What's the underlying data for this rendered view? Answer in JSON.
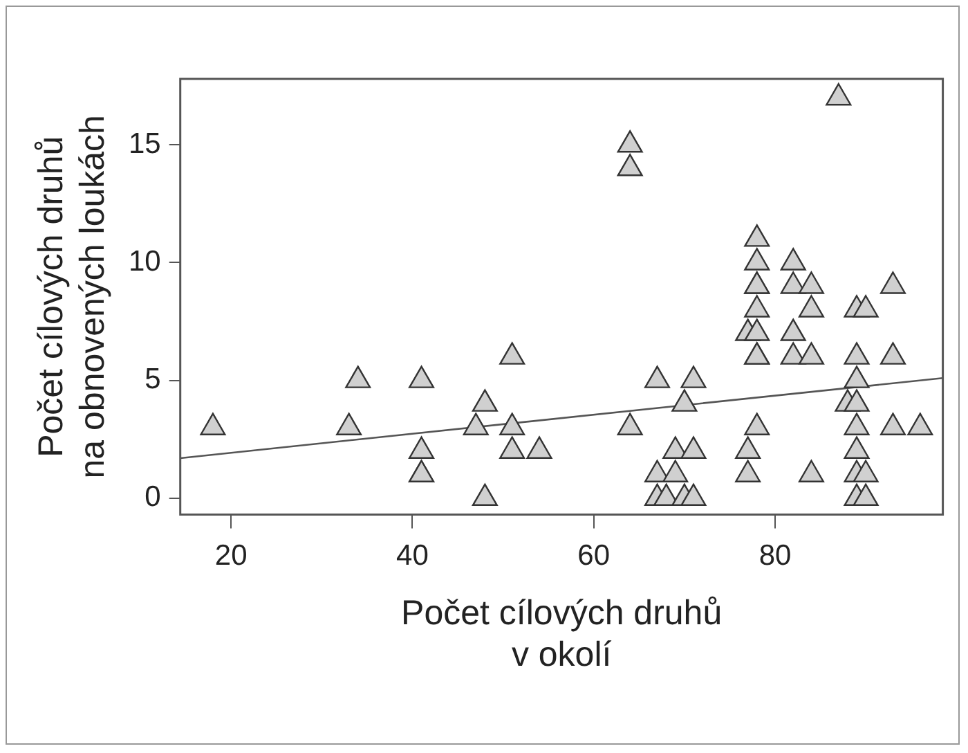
{
  "chart_data": {
    "type": "scatter",
    "xlabel": "Počet cílových druhů\nv okolí",
    "ylabel": "Počet cílových druhů\nna obnovených loukách",
    "xlim": [
      14.4,
      98.5
    ],
    "ylim": [
      -0.7,
      17.8
    ],
    "xticks": [
      20,
      40,
      60,
      80
    ],
    "yticks": [
      0,
      5,
      10,
      15
    ],
    "grid": false,
    "marker": "triangle",
    "series": [
      {
        "color": "#d0d0d0",
        "x": [
          18,
          33,
          34,
          41,
          41,
          41,
          41,
          47,
          48,
          48,
          51,
          51,
          51,
          54,
          64,
          64,
          64,
          67,
          71,
          70,
          69,
          71,
          67,
          69,
          67,
          68,
          70,
          71,
          78,
          78,
          78,
          78,
          78,
          77,
          78,
          78,
          78,
          78,
          77,
          77,
          82,
          82,
          84,
          84,
          82,
          82,
          84,
          84,
          87,
          89,
          90,
          93,
          89,
          93,
          89,
          88,
          89,
          89,
          93,
          96,
          89,
          89,
          90,
          89,
          90
        ],
        "values": [
          3,
          3,
          5,
          5,
          2,
          1,
          1,
          3,
          4,
          0,
          6,
          3,
          2,
          2,
          15,
          14,
          3,
          5,
          5,
          4,
          2,
          2,
          1,
          1,
          0,
          0,
          0,
          0,
          11,
          10,
          9,
          9,
          8,
          7,
          7,
          6,
          6,
          3,
          2,
          1,
          10,
          9,
          9,
          8,
          7,
          6,
          6,
          1,
          17,
          8,
          8,
          9,
          6,
          6,
          5,
          4,
          4,
          3,
          3,
          3,
          2,
          1,
          1,
          0,
          0
        ]
      },
      {
        "type": "line",
        "color": "#555555",
        "marker": "none",
        "x": [
          14.4,
          98.5
        ],
        "values": [
          1.7,
          5.1
        ]
      }
    ]
  }
}
